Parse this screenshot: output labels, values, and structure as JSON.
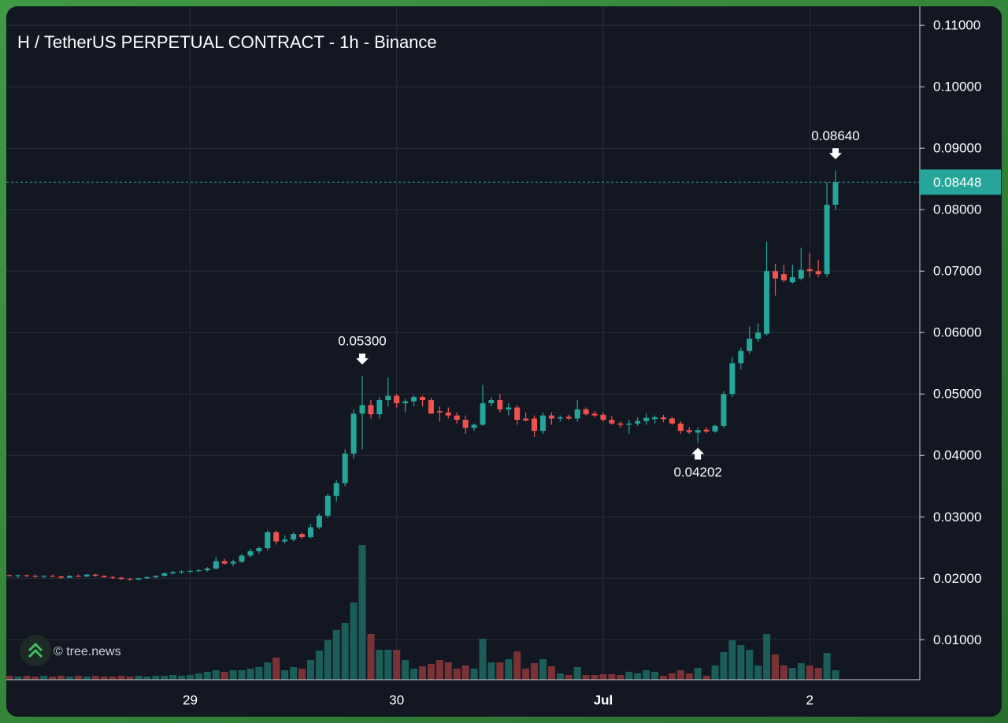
{
  "chart_data": {
    "type": "candlestick",
    "title": "H / TetherUS PERPETUAL CONTRACT - 1h - Binance",
    "categories": [
      null,
      null,
      null,
      null,
      null,
      null,
      null,
      null,
      null,
      null,
      null,
      null,
      null,
      null,
      null,
      null,
      null,
      null,
      null,
      null,
      null,
      "29",
      null,
      null,
      null,
      null,
      null,
      null,
      null,
      null,
      null,
      null,
      null,
      null,
      null,
      null,
      null,
      null,
      null,
      null,
      null,
      null,
      null,
      null,
      null,
      "30",
      null,
      null,
      null,
      null,
      null,
      null,
      null,
      null,
      null,
      null,
      null,
      null,
      null,
      null,
      null,
      null,
      null,
      null,
      null,
      null,
      null,
      null,
      null,
      "Jul",
      null,
      null,
      null,
      null,
      null,
      null,
      null,
      null,
      null,
      null,
      null,
      null,
      null,
      null,
      null,
      null,
      null,
      null,
      null,
      null,
      null,
      null,
      null,
      "2",
      null,
      null,
      null
    ],
    "ohlc": [
      [
        0.0205,
        0.0206,
        0.0203,
        0.0204
      ],
      [
        0.0204,
        0.0206,
        0.0201,
        0.0205
      ],
      [
        0.0205,
        0.0206,
        0.0202,
        0.0204
      ],
      [
        0.0204,
        0.0206,
        0.0201,
        0.0203
      ],
      [
        0.0203,
        0.0205,
        0.02,
        0.0204
      ],
      [
        0.0204,
        0.0206,
        0.0202,
        0.0203
      ],
      [
        0.0203,
        0.0204,
        0.0199,
        0.0201
      ],
      [
        0.0201,
        0.0205,
        0.02,
        0.0204
      ],
      [
        0.0204,
        0.0206,
        0.0202,
        0.0203
      ],
      [
        0.0203,
        0.0207,
        0.0202,
        0.0206
      ],
      [
        0.0206,
        0.0207,
        0.0203,
        0.0204
      ],
      [
        0.0204,
        0.0205,
        0.0201,
        0.0202
      ],
      [
        0.0202,
        0.0204,
        0.0199,
        0.0201
      ],
      [
        0.0201,
        0.0202,
        0.0197,
        0.0199
      ],
      [
        0.0199,
        0.0201,
        0.0196,
        0.0198
      ],
      [
        0.0198,
        0.0201,
        0.0197,
        0.02
      ],
      [
        0.02,
        0.0203,
        0.0199,
        0.0202
      ],
      [
        0.0202,
        0.0205,
        0.02,
        0.0204
      ],
      [
        0.0204,
        0.021,
        0.0203,
        0.0208
      ],
      [
        0.0208,
        0.0212,
        0.0206,
        0.021
      ],
      [
        0.021,
        0.0213,
        0.0208,
        0.0211
      ],
      [
        0.0211,
        0.0214,
        0.0209,
        0.0212
      ],
      [
        0.0212,
        0.0215,
        0.021,
        0.0213
      ],
      [
        0.0213,
        0.0218,
        0.0211,
        0.0216
      ],
      [
        0.0216,
        0.0235,
        0.0214,
        0.0228
      ],
      [
        0.0228,
        0.0232,
        0.0222,
        0.0224
      ],
      [
        0.0224,
        0.023,
        0.022,
        0.0227
      ],
      [
        0.0227,
        0.024,
        0.0225,
        0.0237
      ],
      [
        0.0237,
        0.0248,
        0.0234,
        0.0244
      ],
      [
        0.0244,
        0.0252,
        0.024,
        0.0249
      ],
      [
        0.0249,
        0.0278,
        0.0246,
        0.0275
      ],
      [
        0.0275,
        0.0278,
        0.0255,
        0.026
      ],
      [
        0.026,
        0.027,
        0.0257,
        0.0263
      ],
      [
        0.0263,
        0.0275,
        0.026,
        0.0272
      ],
      [
        0.0272,
        0.0274,
        0.0264,
        0.0267
      ],
      [
        0.0267,
        0.0288,
        0.0265,
        0.0283
      ],
      [
        0.0283,
        0.0305,
        0.028,
        0.0302
      ],
      [
        0.0302,
        0.0338,
        0.0298,
        0.0334
      ],
      [
        0.0334,
        0.036,
        0.0325,
        0.0355
      ],
      [
        0.0355,
        0.041,
        0.035,
        0.0403
      ],
      [
        0.0403,
        0.0475,
        0.0395,
        0.0468
      ],
      [
        0.0468,
        0.053,
        0.041,
        0.0482
      ],
      [
        0.0482,
        0.049,
        0.046,
        0.0467
      ],
      [
        0.0467,
        0.0495,
        0.046,
        0.049
      ],
      [
        0.049,
        0.0527,
        0.048,
        0.0497
      ],
      [
        0.0497,
        0.05,
        0.0478,
        0.0485
      ],
      [
        0.0485,
        0.0492,
        0.047,
        0.0488
      ],
      [
        0.0488,
        0.0498,
        0.048,
        0.0495
      ],
      [
        0.0495,
        0.0497,
        0.048,
        0.049
      ],
      [
        0.049,
        0.0494,
        0.047,
        0.0468
      ],
      [
        0.0472,
        0.048,
        0.0455,
        0.047
      ],
      [
        0.047,
        0.0478,
        0.046,
        0.0465
      ],
      [
        0.0465,
        0.047,
        0.0452,
        0.0458
      ],
      [
        0.0458,
        0.0465,
        0.0435,
        0.0445
      ],
      [
        0.0445,
        0.0452,
        0.044,
        0.045
      ],
      [
        0.045,
        0.0515,
        0.0448,
        0.0485
      ],
      [
        0.0485,
        0.0495,
        0.048,
        0.049
      ],
      [
        0.049,
        0.05,
        0.047,
        0.0475
      ],
      [
        0.0475,
        0.0485,
        0.0465,
        0.0478
      ],
      [
        0.0478,
        0.0482,
        0.045,
        0.0458
      ],
      [
        0.046,
        0.047,
        0.0455,
        0.0457
      ],
      [
        0.046,
        0.0465,
        0.043,
        0.044
      ],
      [
        0.044,
        0.047,
        0.0435,
        0.0465
      ],
      [
        0.0465,
        0.047,
        0.045,
        0.046
      ],
      [
        0.046,
        0.0465,
        0.0455,
        0.0462
      ],
      [
        0.0463,
        0.0466,
        0.0458,
        0.046
      ],
      [
        0.046,
        0.049,
        0.0455,
        0.0475
      ],
      [
        0.0475,
        0.0478,
        0.0465,
        0.0467
      ],
      [
        0.0468,
        0.0472,
        0.0462,
        0.0465
      ],
      [
        0.0466,
        0.047,
        0.0455,
        0.0458
      ],
      [
        0.0458,
        0.0464,
        0.045,
        0.0452
      ],
      [
        0.0452,
        0.0455,
        0.0445,
        0.045
      ],
      [
        0.045,
        0.0458,
        0.0435,
        0.0452
      ],
      [
        0.0452,
        0.0462,
        0.0448,
        0.0456
      ],
      [
        0.0456,
        0.0468,
        0.045,
        0.0461
      ],
      [
        0.0459,
        0.0465,
        0.0452,
        0.0462
      ],
      [
        0.0462,
        0.0466,
        0.0454,
        0.0459
      ],
      [
        0.046,
        0.0463,
        0.045,
        0.0452
      ],
      [
        0.0452,
        0.0456,
        0.0435,
        0.044
      ],
      [
        0.0441,
        0.0446,
        0.0435,
        0.0438
      ],
      [
        0.0437,
        0.0446,
        0.04202,
        0.0441
      ],
      [
        0.0442,
        0.0446,
        0.0436,
        0.0439
      ],
      [
        0.0439,
        0.045,
        0.0437,
        0.0448
      ],
      [
        0.0448,
        0.0505,
        0.0445,
        0.05
      ],
      [
        0.05,
        0.056,
        0.0495,
        0.055
      ],
      [
        0.055,
        0.0575,
        0.054,
        0.057
      ],
      [
        0.057,
        0.061,
        0.0565,
        0.059
      ],
      [
        0.059,
        0.0615,
        0.0585,
        0.06
      ],
      [
        0.0598,
        0.0748,
        0.0595,
        0.07
      ],
      [
        0.07,
        0.0712,
        0.066,
        0.0688
      ],
      [
        0.0695,
        0.071,
        0.0682,
        0.0685
      ],
      [
        0.0682,
        0.071,
        0.068,
        0.069
      ],
      [
        0.0688,
        0.0738,
        0.0685,
        0.0702
      ],
      [
        0.0703,
        0.073,
        0.069,
        0.07
      ],
      [
        0.07,
        0.0718,
        0.069,
        0.0695
      ],
      [
        0.0695,
        0.0845,
        0.069,
        0.0808
      ],
      [
        0.0808,
        0.0864,
        0.08,
        0.08448
      ]
    ],
    "volume": [
      5,
      4,
      5,
      4,
      5,
      4,
      5,
      4,
      5,
      4,
      5,
      4,
      4,
      5,
      4,
      5,
      4,
      5,
      5,
      6,
      5,
      6,
      8,
      10,
      12,
      10,
      12,
      12,
      14,
      16,
      22,
      28,
      12,
      16,
      14,
      25,
      37,
      50,
      63,
      72,
      98,
      171,
      58,
      38,
      38,
      38,
      25,
      14,
      17,
      20,
      25,
      22,
      14,
      18,
      14,
      52,
      22,
      22,
      26,
      36,
      14,
      21,
      26,
      17,
      8,
      6,
      16,
      6,
      6,
      7,
      7,
      6,
      10,
      8,
      12,
      10,
      5,
      8,
      12,
      8,
      15,
      5,
      18,
      35,
      50,
      44,
      38,
      18,
      58,
      32,
      18,
      15,
      21,
      18,
      15,
      34,
      12
    ],
    "vlim": [
      0,
      200
    ],
    "ylim": [
      0.0035,
      0.1131
    ],
    "yticks": [
      {
        "value": 0.01,
        "label": "0.01000"
      },
      {
        "value": 0.02,
        "label": "0.02000"
      },
      {
        "value": 0.03,
        "label": "0.03000"
      },
      {
        "value": 0.04,
        "label": "0.04000"
      },
      {
        "value": 0.05,
        "label": "0.05000"
      },
      {
        "value": 0.06,
        "label": "0.06000"
      },
      {
        "value": 0.07,
        "label": "0.07000"
      },
      {
        "value": 0.08,
        "label": "0.08000"
      },
      {
        "value": 0.09,
        "label": "0.09000"
      },
      {
        "value": 0.1,
        "label": "0.10000"
      },
      {
        "value": 0.11,
        "label": "0.11000"
      }
    ],
    "grid": true,
    "up_color": "#26a69a",
    "down_color": "#ef5350",
    "volume_up_color": "#1b5e59",
    "volume_down_color": "#7b3236",
    "annotations": [
      {
        "value": 0.053,
        "label": "0.05300"
      },
      {
        "value": 0.04202,
        "label": "0.04202"
      },
      {
        "value": 0.0864,
        "label": "0.08640"
      }
    ],
    "last_price": {
      "value": 0.08448,
      "label": "0.08448"
    }
  },
  "watermark": "© tree.news"
}
